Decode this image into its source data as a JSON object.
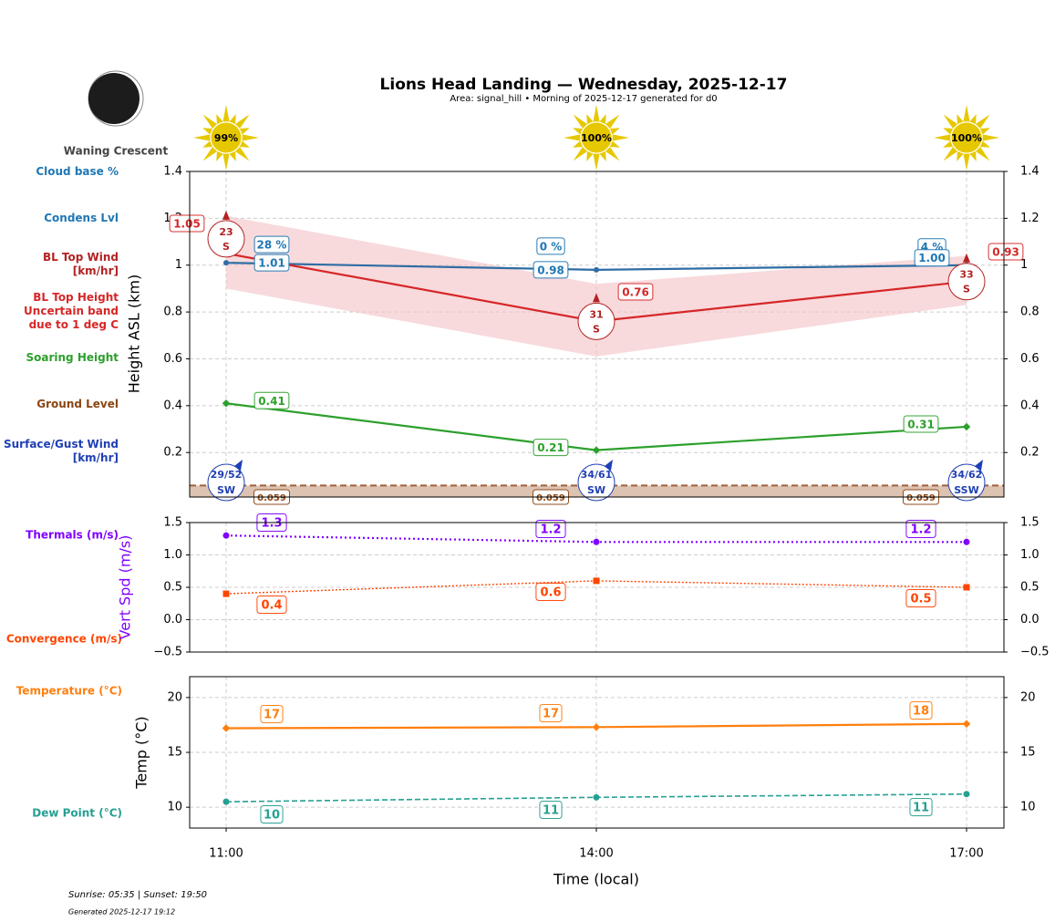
{
  "title": "Lions Head Landing — Wednesday, 2025-12-17",
  "subtitle": "Area: signal_hill • Morning of 2025-12-17 generated for d0",
  "moon_phase": "Waning Crescent",
  "footer": {
    "sun_times": "Sunrise: 05:35 | Sunset: 19:50",
    "generated": "Generated 2025-12-17 19:12"
  },
  "colors": {
    "cloud": "#1f77b4",
    "bl_top": "#d62728",
    "band": "#f4c2c4",
    "soaring": "#2ca02c",
    "ground": "#8b4513",
    "surface_wind": "#1f3fb4",
    "thermals": "#8000ff",
    "convergence": "#ff4500",
    "temperature": "#ff7f0e",
    "dew_point": "#26a092",
    "sun": "#e6c800"
  },
  "chart_data": [
    {
      "type": "line",
      "ylabel": "Height ASL (km)",
      "ylim": [
        0.01,
        1.4
      ],
      "yticks": [
        0.2,
        0.4,
        0.6,
        0.8,
        1.0,
        1.2,
        1.4
      ],
      "x": [
        "11:00",
        "14:00",
        "17:00"
      ],
      "grid": true,
      "side_labels": [
        "Cloud base %",
        "Condens Lvl",
        "BL Top Wind\n[km/hr]",
        "BL Top Height\nUncertain band\ndue to 1 deg C",
        "Soaring Height",
        "Ground Level",
        "Surface/Gust Wind\n[km/hr]"
      ],
      "sun_percent": [
        "99%",
        "100%",
        "100%"
      ],
      "series": [
        {
          "name": "Condens Lvl",
          "values": [
            1.01,
            0.98,
            1.0
          ],
          "labels": [
            "1.01",
            "0.98",
            "1.00"
          ]
        },
        {
          "name": "Cloud base %",
          "labels": [
            "28 %",
            "0 %",
            "4 %"
          ]
        },
        {
          "name": "BL Top Height",
          "values": [
            1.05,
            0.76,
            0.93
          ],
          "labels": [
            "1.05",
            "0.76",
            "0.93"
          ],
          "band_upper": [
            1.21,
            0.92,
            1.04
          ],
          "band_lower": [
            0.9,
            0.61,
            0.83
          ]
        },
        {
          "name": "BL Top Wind",
          "speed": [
            "23",
            "31",
            "33"
          ],
          "dir": [
            "S",
            "S",
            "S"
          ]
        },
        {
          "name": "Soaring Height",
          "values": [
            0.41,
            0.21,
            0.31
          ],
          "labels": [
            "0.41",
            "0.21",
            "0.31"
          ]
        },
        {
          "name": "Ground Level",
          "values": [
            0.059,
            0.059,
            0.059
          ],
          "labels": [
            "0.059",
            "0.059",
            "0.059"
          ]
        },
        {
          "name": "Surface/Gust Wind",
          "speed": [
            "29/52",
            "34/61",
            "34/62"
          ],
          "dir": [
            "SW",
            "SW",
            "SSW"
          ]
        }
      ]
    },
    {
      "type": "line",
      "ylabel": "Vert Spd (m/s)",
      "ylim": [
        -0.5,
        1.5
      ],
      "yticks": [
        -0.5,
        0.0,
        0.5,
        1.0,
        1.5
      ],
      "yticklabels": [
        "−0.5",
        "0.0",
        "0.5",
        "1.0",
        "1.5"
      ],
      "x": [
        "11:00",
        "14:00",
        "17:00"
      ],
      "grid": true,
      "series": [
        {
          "name": "Thermals (m/s)",
          "values": [
            1.3,
            1.2,
            1.2
          ],
          "labels": [
            "1.3",
            "1.2",
            "1.2"
          ]
        },
        {
          "name": "Convergence (m/s)",
          "values": [
            0.4,
            0.6,
            0.5
          ],
          "labels": [
            "0.4",
            "0.6",
            "0.5"
          ]
        }
      ]
    },
    {
      "type": "line",
      "ylabel": "Temp (°C)",
      "xlabel": "Time (local)",
      "ylim": [
        8.1,
        21.9
      ],
      "yticks": [
        10,
        15,
        20
      ],
      "x": [
        "11:00",
        "14:00",
        "17:00"
      ],
      "grid": true,
      "series": [
        {
          "name": "Temperature (°C)",
          "values": [
            17.2,
            17.3,
            17.6
          ],
          "labels": [
            "17",
            "17",
            "18"
          ]
        },
        {
          "name": "Dew Point (°C)",
          "values": [
            10.5,
            10.9,
            11.2
          ],
          "labels": [
            "10",
            "11",
            "11"
          ]
        }
      ]
    }
  ]
}
